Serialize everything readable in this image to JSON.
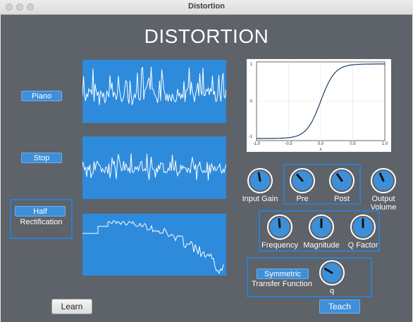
{
  "window": {
    "title": "Distortion"
  },
  "header": {
    "title": "DISTORTION"
  },
  "source_buttons": {
    "piano": "Piano",
    "stop": "Stop"
  },
  "rectification": {
    "mode": "Half",
    "label": "Rectification"
  },
  "transfer_plot": {
    "x_ticks": [
      "-1.0",
      "-0.5",
      "0.0",
      "0.5",
      "1.0"
    ],
    "y_ticks": [
      "1",
      "0",
      "-1"
    ],
    "xlabel": "x"
  },
  "knobs": {
    "input_gain": "Input Gain",
    "pre": "Pre",
    "post": "Post",
    "output_volume_1": "Output",
    "output_volume_2": "Volume",
    "frequency": "Frequency",
    "magnitude": "Magnitude",
    "q_factor": "Q Factor",
    "q": "q"
  },
  "transfer": {
    "mode": "Symmetric",
    "label": "Transfer Function"
  },
  "actions": {
    "learn": "Learn",
    "teach": "Teach"
  },
  "colors": {
    "accent": "#3d8fd9",
    "panel_bg": "#5e6269",
    "wave_bg": "#2e8bdc",
    "group_border": "#2f7fc9"
  }
}
